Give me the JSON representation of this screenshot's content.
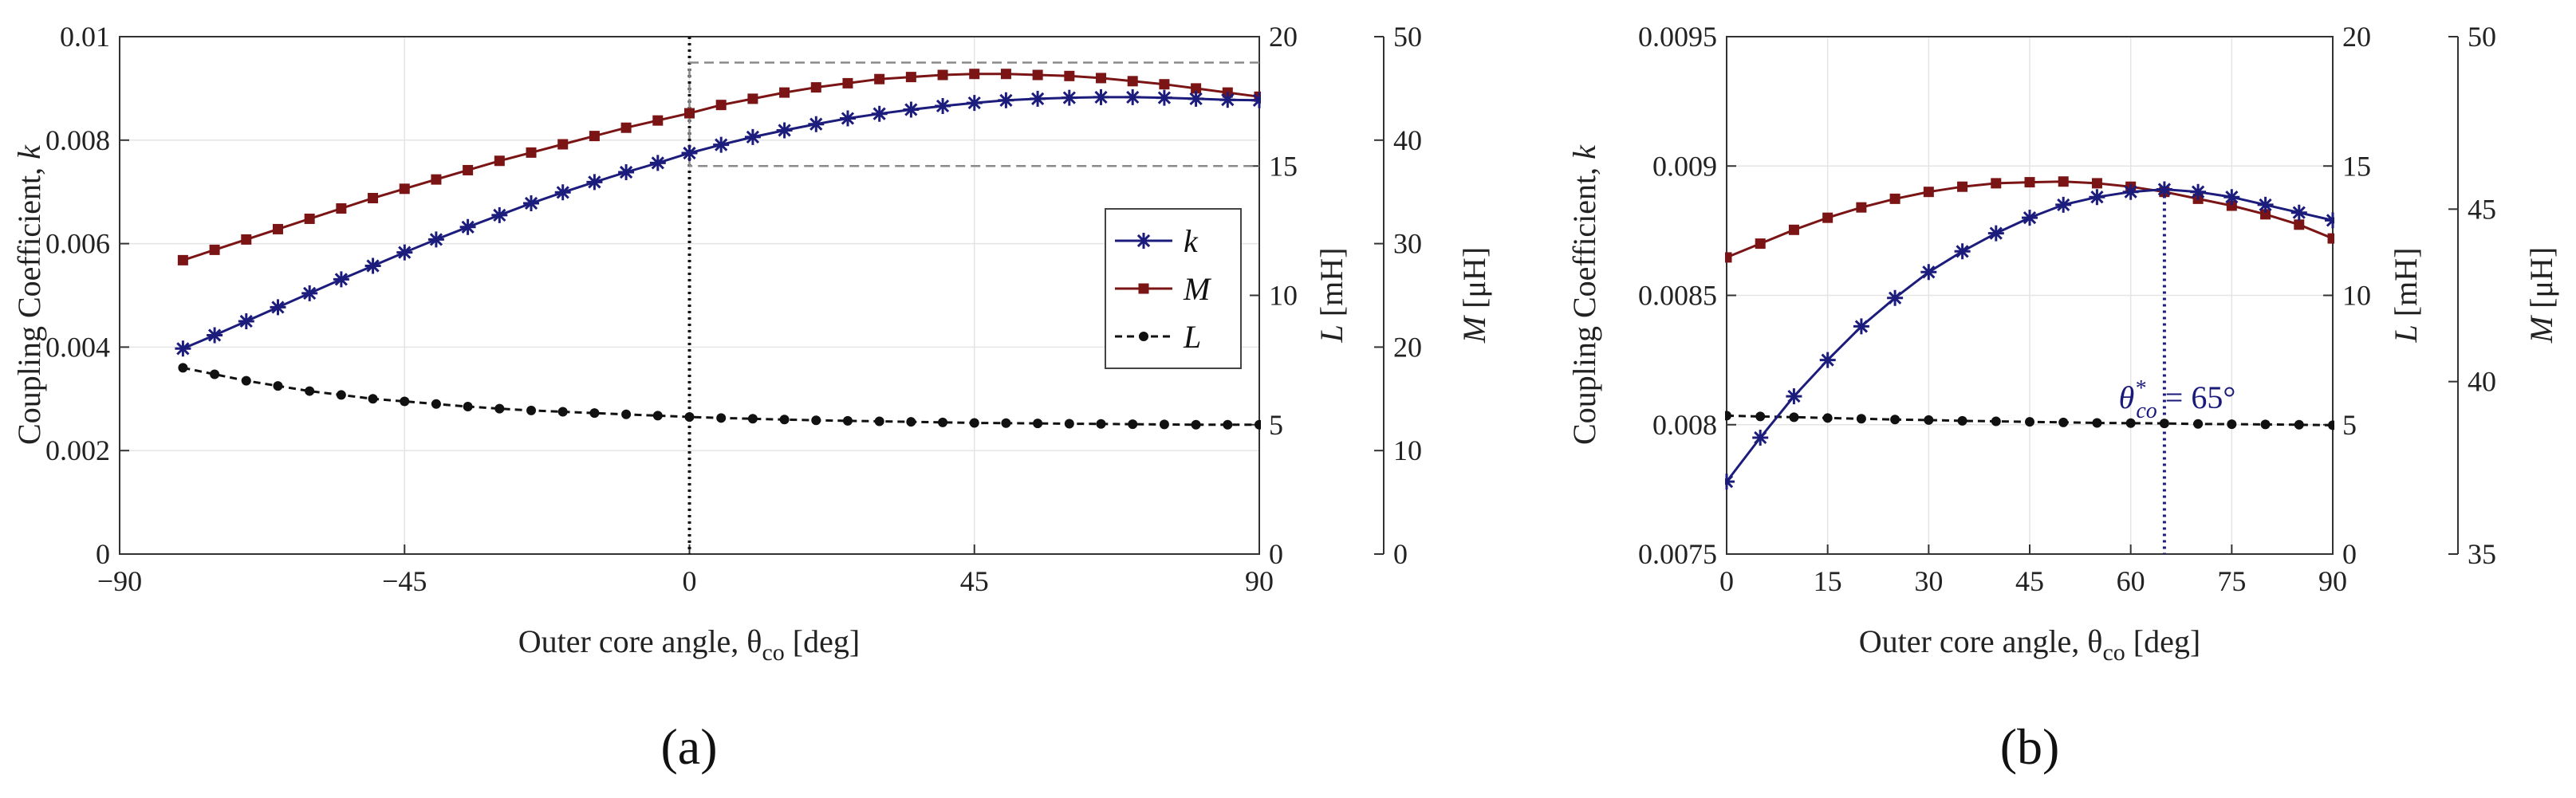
{
  "colors": {
    "k": "#1c1c7c",
    "M": "#7b1414",
    "L": "#111111",
    "grid": "#e4e4e4",
    "axis": "#333333"
  },
  "chart_data": [
    {
      "id": "a",
      "panel_label": "(a)",
      "type": "line",
      "xlabel": "Outer core angle, θco [deg]",
      "xlabel_main": "Outer core angle, θ",
      "xlabel_sub": "co",
      "xlabel_end": " [deg]",
      "ylabel": "Coupling Coefficient, k",
      "ylabel_main": "Coupling Coefficient, ",
      "ylabel_var": "k",
      "y2label": "L [mH]",
      "y2label_var": "L",
      "y2label_unit": " [mH]",
      "y3label": "M [μH]",
      "y3label_var": "M",
      "y3label_unit": " [μH]",
      "xlim": [
        -90,
        90
      ],
      "ylim": [
        0,
        0.01
      ],
      "y2lim": [
        0,
        20
      ],
      "y3lim": [
        0,
        50
      ],
      "xticks": [
        -90,
        -45,
        0,
        45,
        90
      ],
      "xtick_labels": [
        "−90",
        "−45",
        "0",
        "45",
        "90"
      ],
      "yticks": [
        0,
        0.002,
        0.004,
        0.006,
        0.008,
        0.01
      ],
      "ytick_labels": [
        "0",
        "0.002",
        "0.004",
        "0.006",
        "0.008",
        "0.01"
      ],
      "y2ticks": [
        0,
        5,
        10,
        15,
        20
      ],
      "y2tick_labels": [
        "0",
        "5",
        "10",
        "15",
        "20"
      ],
      "y3ticks": [
        0,
        10,
        20,
        30,
        40,
        50
      ],
      "y3tick_labels": [
        "0",
        "10",
        "20",
        "30",
        "40",
        "50"
      ],
      "x": [
        -80,
        -75,
        -70,
        -65,
        -60,
        -55,
        -50,
        -45,
        -40,
        -35,
        -30,
        -25,
        -20,
        -15,
        -10,
        -5,
        0,
        5,
        10,
        15,
        20,
        25,
        30,
        35,
        40,
        45,
        50,
        55,
        60,
        65,
        70,
        75,
        80,
        85,
        90
      ],
      "series": [
        {
          "name": "k",
          "axis": "k",
          "marker": "star",
          "style": "solid",
          "values": [
            0.00397,
            0.00423,
            0.0045,
            0.00477,
            0.00504,
            0.00531,
            0.00557,
            0.00583,
            0.00608,
            0.00632,
            0.00655,
            0.00678,
            0.00699,
            0.00719,
            0.00738,
            0.00756,
            0.00775,
            0.00791,
            0.00806,
            0.00819,
            0.00831,
            0.00842,
            0.00851,
            0.00859,
            0.00866,
            0.00872,
            0.00877,
            0.0088,
            0.00882,
            0.00883,
            0.00883,
            0.00882,
            0.0088,
            0.00878,
            0.00877
          ]
        },
        {
          "name": "M",
          "axis": "M",
          "marker": "square",
          "style": "solid",
          "values": [
            28.4,
            29.4,
            30.4,
            31.4,
            32.4,
            33.4,
            34.4,
            35.3,
            36.2,
            37.1,
            38.0,
            38.8,
            39.6,
            40.4,
            41.2,
            41.9,
            42.6,
            43.4,
            44.0,
            44.6,
            45.1,
            45.5,
            45.9,
            46.1,
            46.3,
            46.4,
            46.4,
            46.3,
            46.2,
            46.0,
            45.7,
            45.4,
            45.0,
            44.6,
            44.2
          ]
        },
        {
          "name": "L",
          "axis": "L",
          "marker": "circle",
          "style": "dashed",
          "values": [
            7.2,
            6.95,
            6.7,
            6.5,
            6.3,
            6.15,
            6.0,
            5.9,
            5.8,
            5.7,
            5.62,
            5.55,
            5.5,
            5.45,
            5.4,
            5.35,
            5.3,
            5.26,
            5.23,
            5.2,
            5.17,
            5.15,
            5.13,
            5.11,
            5.09,
            5.07,
            5.06,
            5.05,
            5.04,
            5.03,
            5.02,
            5.01,
            5.0,
            5.0,
            5.0
          ]
        }
      ],
      "legend": {
        "position": "center-right",
        "entries": [
          "k",
          "M",
          "L"
        ]
      },
      "annotations": {
        "vline_x": 0,
        "zoom_box": {
          "x_range": [
            0,
            90
          ],
          "k_range": [
            0.0075,
            0.0095
          ]
        }
      }
    },
    {
      "id": "b",
      "panel_label": "(b)",
      "type": "line",
      "xlabel": "Outer core angle, θco [deg]",
      "xlabel_main": "Outer core angle, θ",
      "xlabel_sub": "co",
      "xlabel_end": " [deg]",
      "ylabel": "Coupling Coefficient, k",
      "ylabel_main": "Coupling Coefficient, ",
      "ylabel_var": "k",
      "y2label": "L [mH]",
      "y2label_var": "L",
      "y2label_unit": " [mH]",
      "y3label": "M [μH]",
      "y3label_var": "M",
      "y3label_unit": " [μH]",
      "xlim": [
        0,
        90
      ],
      "ylim": [
        0.0075,
        0.0095
      ],
      "y2lim": [
        0,
        20
      ],
      "y3lim": [
        35,
        50
      ],
      "xticks": [
        0,
        15,
        30,
        45,
        60,
        75,
        90
      ],
      "xtick_labels": [
        "0",
        "15",
        "30",
        "45",
        "60",
        "75",
        "90"
      ],
      "yticks": [
        0.0075,
        0.008,
        0.0085,
        0.009,
        0.0095
      ],
      "ytick_labels": [
        "0.0075",
        "0.008",
        "0.0085",
        "0.009",
        "0.0095"
      ],
      "y2ticks": [
        0,
        5,
        10,
        15,
        20
      ],
      "y2tick_labels": [
        "0",
        "5",
        "10",
        "15",
        "20"
      ],
      "y3ticks": [
        35,
        40,
        45,
        50
      ],
      "y3tick_labels": [
        "35",
        "40",
        "45",
        "50"
      ],
      "x": [
        0,
        5,
        10,
        15,
        20,
        25,
        30,
        35,
        40,
        45,
        50,
        55,
        60,
        65,
        70,
        75,
        80,
        85,
        90
      ],
      "series": [
        {
          "name": "k",
          "axis": "k",
          "marker": "star",
          "style": "solid",
          "values": [
            0.00778,
            0.00795,
            0.00811,
            0.00825,
            0.00838,
            0.00849,
            0.00859,
            0.00867,
            0.00874,
            0.0088,
            0.00885,
            0.00888,
            0.0089,
            0.00891,
            0.0089,
            0.00888,
            0.00885,
            0.00882,
            0.00879
          ]
        },
        {
          "name": "M",
          "axis": "M",
          "marker": "square",
          "style": "solid",
          "values": [
            43.6,
            44.0,
            44.4,
            44.75,
            45.05,
            45.3,
            45.5,
            45.65,
            45.75,
            45.78,
            45.8,
            45.75,
            45.65,
            45.5,
            45.3,
            45.1,
            44.85,
            44.55,
            44.15
          ]
        },
        {
          "name": "L",
          "axis": "L",
          "marker": "circle",
          "style": "dashed",
          "values": [
            5.35,
            5.32,
            5.29,
            5.26,
            5.23,
            5.2,
            5.18,
            5.15,
            5.13,
            5.11,
            5.09,
            5.07,
            5.06,
            5.05,
            5.03,
            5.02,
            5.01,
            5.0,
            4.98
          ]
        }
      ],
      "annotations": {
        "vline_x": 65,
        "label": "θ*co = 65°",
        "label_theta": "θ",
        "label_sup": "*",
        "label_sub": "co",
        "label_end": " = 65°"
      }
    }
  ]
}
